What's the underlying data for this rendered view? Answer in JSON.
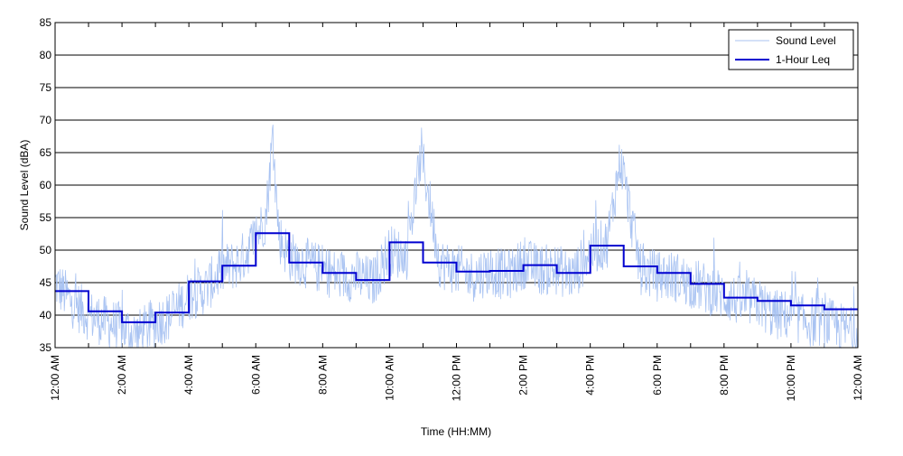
{
  "chart_data": {
    "type": "line",
    "xlabel": "Time (HH:MM)",
    "ylabel": "Sound Level (dBA)",
    "ylim": [
      35,
      85
    ],
    "xlim_hours": [
      0,
      24
    ],
    "grid": "horizontal",
    "legend_position": "top-right",
    "y_ticks": [
      35,
      40,
      45,
      50,
      55,
      60,
      65,
      70,
      75,
      80,
      85
    ],
    "x_ticks": [
      {
        "hour": 0,
        "label": "12:00 AM"
      },
      {
        "hour": 2,
        "label": "2:00 AM"
      },
      {
        "hour": 4,
        "label": "4:00 AM"
      },
      {
        "hour": 6,
        "label": "6:00 AM"
      },
      {
        "hour": 8,
        "label": "8:00 AM"
      },
      {
        "hour": 10,
        "label": "10:00 AM"
      },
      {
        "hour": 12,
        "label": "12:00 PM"
      },
      {
        "hour": 14,
        "label": "2:00 PM"
      },
      {
        "hour": 16,
        "label": "4:00 PM"
      },
      {
        "hour": 18,
        "label": "6:00 PM"
      },
      {
        "hour": 20,
        "label": "8:00 PM"
      },
      {
        "hour": 22,
        "label": "10:00 PM"
      },
      {
        "hour": 24,
        "label": "12:00 AM"
      }
    ],
    "series": [
      {
        "name": "Sound Level",
        "color": "#a9c3f2",
        "hours": [
          0,
          0.5,
          1,
          1.5,
          2,
          2.5,
          3,
          3.5,
          4,
          4.5,
          5,
          5.5,
          6,
          6.3,
          6.5,
          6.7,
          7,
          7.5,
          8,
          8.5,
          9,
          9.5,
          10,
          10.5,
          10.95,
          11.5,
          12,
          12.5,
          13,
          13.5,
          14,
          14.5,
          15,
          15.5,
          16,
          16.5,
          16.9,
          17.5,
          18,
          18.5,
          19,
          19.5,
          20,
          20.5,
          21,
          21.5,
          22,
          22.5,
          23,
          23.5,
          24
        ],
        "values": [
          45,
          42,
          40,
          39,
          38,
          37,
          39,
          40,
          43,
          44,
          47,
          48,
          52,
          55,
          67,
          52,
          49,
          48,
          47,
          46,
          46,
          45,
          50,
          49,
          65,
          48,
          47,
          46,
          47,
          46,
          48,
          47,
          47,
          46,
          50,
          51,
          64,
          47,
          46,
          46,
          45,
          44,
          43,
          42,
          42,
          40,
          40,
          39,
          39,
          38,
          37
        ]
      },
      {
        "name": "1-Hour Leq",
        "color": "#0000d0",
        "type": "step",
        "hourly_values": [
          43.7,
          40.6,
          38.9,
          40.4,
          45.2,
          47.6,
          52.6,
          48.1,
          46.5,
          45.4,
          51.2,
          48.1,
          46.7,
          46.8,
          47.7,
          46.5,
          50.7,
          47.5,
          46.5,
          44.8,
          42.7,
          42.2,
          41.5,
          40.9
        ]
      }
    ]
  }
}
